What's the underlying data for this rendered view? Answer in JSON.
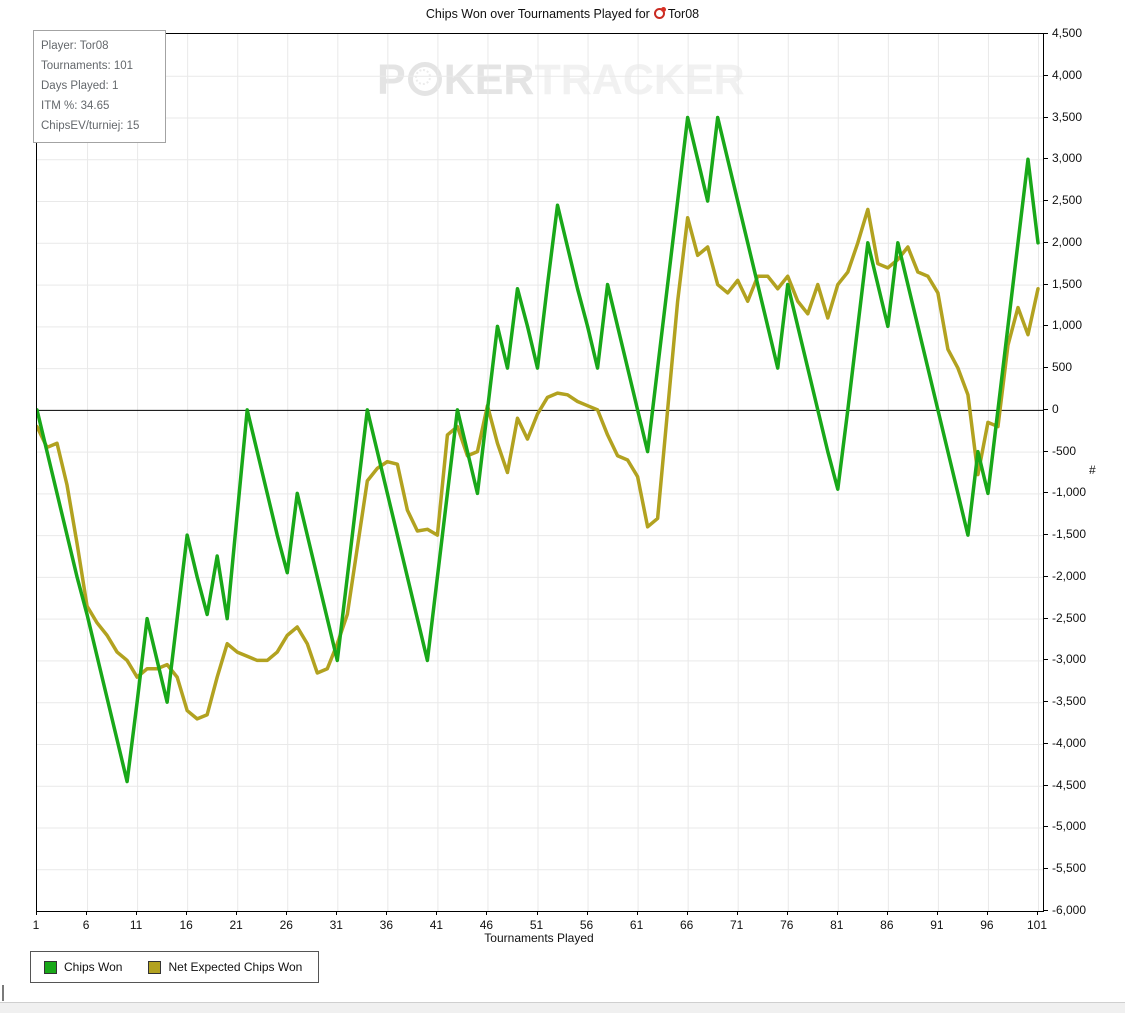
{
  "title": {
    "text": "Chips Won over Tournaments Played for",
    "player": "Tor08"
  },
  "info_box": {
    "lines": [
      "Player: Tor08",
      "Tournaments: 101",
      "Days Played: 1",
      "ITM %: 34.65",
      "ChipsEV/turniej: 15"
    ]
  },
  "watermark": {
    "prefix": "P",
    "middle": "KER",
    "suffix": "TRACKER"
  },
  "axes": {
    "x_label": "Tournaments Played",
    "y_label": "#",
    "x_ticks": [
      1,
      6,
      11,
      16,
      21,
      26,
      31,
      36,
      41,
      46,
      51,
      56,
      61,
      66,
      71,
      76,
      81,
      86,
      91,
      96,
      101
    ],
    "y_ticks": [
      {
        "v": 4500,
        "label": "4,500"
      },
      {
        "v": 4000,
        "label": "4,000"
      },
      {
        "v": 3500,
        "label": "3,500"
      },
      {
        "v": 3000,
        "label": "3,000"
      },
      {
        "v": 2500,
        "label": "2,500"
      },
      {
        "v": 2000,
        "label": "2,000"
      },
      {
        "v": 1500,
        "label": "1,500"
      },
      {
        "v": 1000,
        "label": "1,000"
      },
      {
        "v": 500,
        "label": "500"
      },
      {
        "v": 0,
        "label": "0"
      },
      {
        "v": -500,
        "label": "-500"
      },
      {
        "v": -1000,
        "label": "-1,000"
      },
      {
        "v": -1500,
        "label": "-1,500"
      },
      {
        "v": -2000,
        "label": "-2,000"
      },
      {
        "v": -2500,
        "label": "-2,500"
      },
      {
        "v": -3000,
        "label": "-3,000"
      },
      {
        "v": -3500,
        "label": "-3,500"
      },
      {
        "v": -4000,
        "label": "-4,000"
      },
      {
        "v": -4500,
        "label": "-4,500"
      },
      {
        "v": -5000,
        "label": "-5,000"
      },
      {
        "v": -5500,
        "label": "-5,500"
      },
      {
        "v": -6000,
        "label": "-6,000"
      }
    ]
  },
  "legend": [
    {
      "label": "Chips Won",
      "color": "#19a819"
    },
    {
      "label": "Net Expected Chips Won",
      "color": "#b2a220"
    }
  ],
  "colors": {
    "chips_won": "#19a819",
    "net_expected": "#b2a220",
    "grid": "#e9e9e9",
    "zero_line": "#000000"
  },
  "chart_data": {
    "type": "line",
    "title": "Chips Won over Tournaments Played for Tor08",
    "xlabel": "Tournaments Played",
    "ylabel": "#",
    "xlim": [
      1,
      101
    ],
    "ylim": [
      -6000,
      4500
    ],
    "grid": true,
    "legend_position": "bottom-left",
    "x": [
      1,
      2,
      3,
      4,
      5,
      6,
      7,
      8,
      9,
      10,
      11,
      12,
      13,
      14,
      15,
      16,
      17,
      18,
      19,
      20,
      21,
      22,
      23,
      24,
      25,
      26,
      27,
      28,
      29,
      30,
      31,
      32,
      33,
      34,
      35,
      36,
      37,
      38,
      39,
      40,
      41,
      42,
      43,
      44,
      45,
      46,
      47,
      48,
      49,
      50,
      51,
      52,
      53,
      54,
      55,
      56,
      57,
      58,
      59,
      60,
      61,
      62,
      63,
      64,
      65,
      66,
      67,
      68,
      69,
      70,
      71,
      72,
      73,
      74,
      75,
      76,
      77,
      78,
      79,
      80,
      81,
      82,
      83,
      84,
      85,
      86,
      87,
      88,
      89,
      90,
      91,
      92,
      93,
      94,
      95,
      96,
      97,
      98,
      99,
      100,
      101
    ],
    "series": [
      {
        "name": "Chips Won",
        "color": "#19a819",
        "values": [
          0,
          -500,
          -1000,
          -1500,
          -2000,
          -2450,
          -2950,
          -3450,
          -3950,
          -4450,
          -3500,
          -2500,
          -3000,
          -3500,
          -2500,
          -1500,
          -2000,
          -2450,
          -1750,
          -2500,
          -1250,
          0,
          -500,
          -1000,
          -1500,
          -1950,
          -1000,
          -1500,
          -2000,
          -2500,
          -3000,
          -2000,
          -1000,
          0,
          -500,
          -1000,
          -1500,
          -2000,
          -2500,
          -3000,
          -2000,
          -1000,
          0,
          -500,
          -1000,
          0,
          1000,
          500,
          1450,
          1000,
          500,
          1500,
          2450,
          1950,
          1450,
          1000,
          500,
          1500,
          1000,
          500,
          0,
          -500,
          500,
          1500,
          2500,
          3500,
          3000,
          2500,
          3500,
          3000,
          2500,
          2000,
          1500,
          1000,
          500,
          1500,
          1000,
          500,
          0,
          -500,
          -950,
          0,
          1000,
          2000,
          1500,
          1000,
          2000,
          1500,
          1000,
          500,
          0,
          -500,
          -1000,
          -1500,
          -500,
          -1000,
          0,
          1000,
          2000,
          3000,
          2000
        ]
      },
      {
        "name": "Net Expected Chips Won",
        "color": "#b2a220",
        "values": [
          -200,
          -450,
          -400,
          -900,
          -1600,
          -2350,
          -2550,
          -2700,
          -2900,
          -3000,
          -3200,
          -3100,
          -3100,
          -3050,
          -3200,
          -3600,
          -3700,
          -3650,
          -3200,
          -2800,
          -2900,
          -2950,
          -3000,
          -3000,
          -2900,
          -2700,
          -2600,
          -2800,
          -3150,
          -3100,
          -2800,
          -2450,
          -1650,
          -850,
          -700,
          -620,
          -650,
          -1200,
          -1450,
          -1430,
          -1500,
          -300,
          -200,
          -550,
          -500,
          50,
          -400,
          -750,
          -100,
          -350,
          -50,
          150,
          200,
          180,
          100,
          50,
          0,
          -300,
          -550,
          -600,
          -800,
          -1400,
          -1300,
          0,
          1300,
          2300,
          1850,
          1950,
          1500,
          1400,
          1550,
          1300,
          1600,
          1600,
          1450,
          1600,
          1300,
          1150,
          1500,
          1100,
          1500,
          1650,
          2000,
          2400,
          1750,
          1700,
          1800,
          1950,
          1650,
          1600,
          1400,
          725,
          500,
          180,
          -775,
          -150,
          -200,
          775,
          1225,
          900,
          1450
        ]
      }
    ]
  }
}
